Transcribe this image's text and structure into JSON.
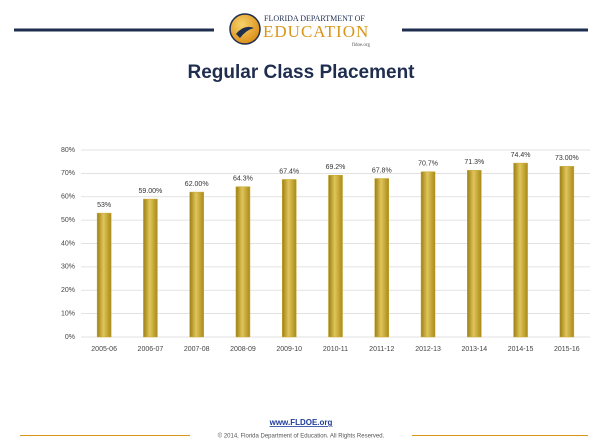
{
  "header": {
    "org_line": "FLORIDA DEPARTMENT OF",
    "org_name": "EDUCATION",
    "site": "fldoe.org"
  },
  "chart_data": {
    "type": "bar",
    "title": "Regular Class Placement",
    "categories": [
      "2005-06",
      "2006-07",
      "2007-08",
      "2008-09",
      "2009-10",
      "2010-11",
      "2011-12",
      "2012-13",
      "2013-14",
      "2014-15",
      "2015-16"
    ],
    "values": [
      53,
      59,
      62,
      64.3,
      67.4,
      69.2,
      67.8,
      70.7,
      71.3,
      74.4,
      73
    ],
    "value_labels": [
      "53%",
      "59.00%",
      "62.00%",
      "64.3%",
      "67.4%",
      "69.2%",
      "67.8%",
      "70.7%",
      "71.3%",
      "74.4%",
      "73.00%"
    ],
    "color": "#c8a82c",
    "ylim": [
      0,
      80
    ],
    "yticks": [
      {
        "value": 0,
        "label": "0%"
      },
      {
        "value": 10,
        "label": "10%"
      },
      {
        "value": 20,
        "label": "20%"
      },
      {
        "value": 30,
        "label": "30%"
      },
      {
        "value": 40,
        "label": "40%"
      },
      {
        "value": 50,
        "label": "50%"
      },
      {
        "value": 60,
        "label": "60%"
      },
      {
        "value": 70,
        "label": "70%"
      },
      {
        "value": 80,
        "label": "80%"
      }
    ],
    "grid": true
  },
  "footer": {
    "url": "www.FLDOE.org",
    "copyright": "© 2014, Florida Department of Education. All Rights Reserved."
  }
}
